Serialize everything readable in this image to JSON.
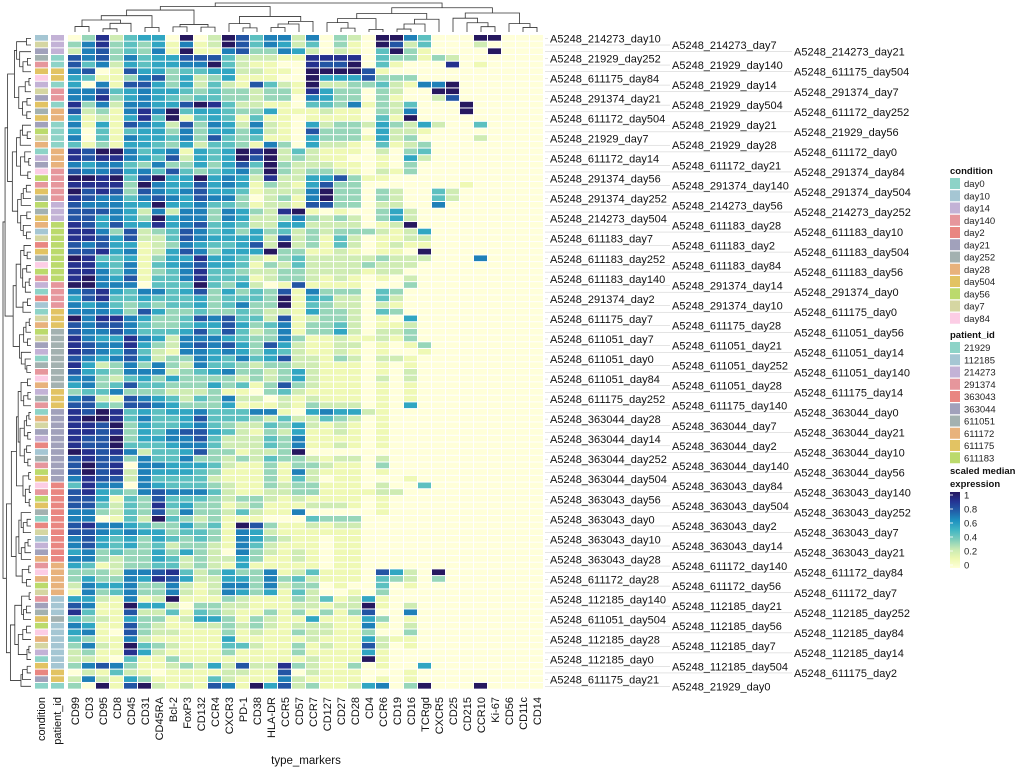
{
  "chart_data": {
    "type": "heatmap",
    "xlabel": "type_markers",
    "annotation_columns": [
      "condition",
      "patient_id"
    ],
    "columns": [
      "CD99",
      "CD3",
      "CD95",
      "CD8",
      "CD45",
      "CD31",
      "CD45RA",
      "Bcl-2",
      "FoxP3",
      "CD132",
      "CCR4",
      "CXCR3",
      "PD-1",
      "CD38",
      "HLA-DR",
      "CCR5",
      "CD57",
      "CCR7",
      "CD127",
      "CD27",
      "CD28",
      "CD4",
      "CCR6",
      "CD19",
      "CD16",
      "TCRgd",
      "CXCR5",
      "CD25",
      "CD215",
      "CCR10",
      "Ki-67",
      "CD56",
      "CD11c",
      "CD14"
    ],
    "rows": [
      "A5248_214273_day10",
      "A5248_214273_day7",
      "A5248_214273_day21",
      "A5248_21929_day252",
      "A5248_21929_day140",
      "A5248_611175_day504",
      "A5248_611175_day84",
      "A5248_21929_day14",
      "A5248_291374_day7",
      "A5248_291374_day21",
      "A5248_21929_day504",
      "A5248_611172_day252",
      "A5248_611172_day504",
      "A5248_21929_day21",
      "A5248_21929_day56",
      "A5248_21929_day7",
      "A5248_21929_day28",
      "A5248_611172_day0",
      "A5248_611172_day14",
      "A5248_611172_day21",
      "A5248_291374_day84",
      "A5248_291374_day56",
      "A5248_291374_day140",
      "A5248_291374_day504",
      "A5248_291374_day252",
      "A5248_214273_day56",
      "A5248_214273_day252",
      "A5248_214273_day504",
      "A5248_611183_day28",
      "A5248_611183_day10",
      "A5248_611183_day7",
      "A5248_611183_day2",
      "A5248_611183_day504",
      "A5248_611183_day252",
      "A5248_611183_day84",
      "A5248_611183_day56",
      "A5248_611183_day140",
      "A5248_291374_day14",
      "A5248_291374_day0",
      "A5248_291374_day2",
      "A5248_291374_day10",
      "A5248_611175_day0",
      "A5248_611175_day7",
      "A5248_611175_day28",
      "A5248_611051_day56",
      "A5248_611051_day7",
      "A5248_611051_day21",
      "A5248_611051_day14",
      "A5248_611051_day0",
      "A5248_611051_day252",
      "A5248_611051_day140",
      "A5248_611051_day84",
      "A5248_611051_day28",
      "A5248_611175_day14",
      "A5248_611175_day252",
      "A5248_611175_day140",
      "A5248_363044_day0",
      "A5248_363044_day28",
      "A5248_363044_day7",
      "A5248_363044_day21",
      "A5248_363044_day14",
      "A5248_363044_day2",
      "A5248_363044_day10",
      "A5248_363044_day252",
      "A5248_363044_day140",
      "A5248_363044_day56",
      "A5248_363044_day504",
      "A5248_363043_day84",
      "A5248_363043_day140",
      "A5248_363043_day56",
      "A5248_363043_day504",
      "A5248_363043_day252",
      "A5248_363043_day0",
      "A5248_363043_day2",
      "A5248_363043_day7",
      "A5248_363043_day10",
      "A5248_363043_day14",
      "A5248_363043_day21",
      "A5248_363043_day28",
      "A5248_611172_day140",
      "A5248_611172_day84",
      "A5248_611172_day28",
      "A5248_611172_day56",
      "A5248_611172_day7",
      "A5248_112185_day140",
      "A5248_112185_day21",
      "A5248_112185_day252",
      "A5248_611051_day504",
      "A5248_112185_day56",
      "A5248_112185_day84",
      "A5248_112185_day28",
      "A5248_112185_day7",
      "A5248_112185_day14",
      "A5248_112185_day0",
      "A5248_112185_day504",
      "A5248_611175_day2",
      "A5248_611175_day21",
      "A5248_21929_day0"
    ],
    "value_digits_scale": 9,
    "values_digits": [
      "0382455090297466260320996400099000",
      "3683435161297465240310972400020000",
      "2673436191167336520210493100009000",
      "7673645577742221188880433132000000",
      "7462545566942110087790410008010000",
      "6701755344552211099997100000000000",
      "5411367352351110095557333000000000",
      "5061775352421742192233421669000000",
      "6674565543433233185330320099000000",
      "6683565434433233065330310027000000",
      "8362665579842211044361324000900000",
      "7231686945543351112110326000900000",
      "5121584914541411011110419000000000",
      "6151765273652621052332532520040000",
      "5041455363553521073330522100000000",
      "6041655463743411053331523000020000",
      "4131554352443163052210412300000000",
      "8799645615459892421110203400000000",
      "8788654725459792321100105200000000",
      "6566436335357493222110103000000000",
      "7667564743456393233210213000000000",
      "9989479559565282255731100000000000",
      "8888396557565132157330000000100000",
      "9787376567554122269330320042000000",
      "8766467657663023169330320042000000",
      "7666559556443122177330220060000000",
      "7776526266365328910100352000000000",
      "7756539566365223632320352000000000",
      "8757558567454225522220129000000000",
      "8863723476453534232333212500000000",
      "8875722476555527231420112200000000",
      "7675512365445729231420121100000000",
      "7785612576355593311210110900000000",
      "9844513558554213422222322200060000",
      "8854614567554132422223222000000000",
      "8864613468443223322221220000000000",
      "8965714468444123321210102000000000",
      "9966604449435201711110003000000000",
      "6785466457353437163330430000000000",
      "5784454445344439154220420000000000",
      "6564343445346339143220210000000000",
      "6665375334334322153320430000000000",
      "9688653347674427123320105000000000",
      "7677643345575346133420112000000000",
      "7667644457474236133520223000000000",
      "8655865266654336311211213000000000",
      "8766853267675375211220101300000000",
      "8765742166565354211210100100000000",
      "7656752336546457221320221000000000",
      "8523636326443233221110101000000000",
      "7543666234563323521110102000000000",
      "6632453533332323521110202000000000",
      "5634744333534137321110101000000000",
      "3446333222311034211110101000000000",
      "6721765424362202121110101000000000",
      "7743776533351112132220105000000000",
      "8798454556444661056552100000000000",
      "8998464457444324224320100000000000",
      "8879354456432243521210100000000000",
      "8878354677542132511210100000000000",
      "8779355667422243611110100000000000",
      "8779444566422243611210100000000000",
      "9878624457331223900000000000000000",
      "7877364463323243321220200000000000",
      "7978066555421131332110300000000000",
      "7978265554311131621110100000000000",
      "6877264444211131420110001000000000",
      "4866065444321132331110200400000000",
      "7854367666421122331111220000000000",
      "7751437444323321211110100000000000",
      "7742438453312311122210100000000000",
      "6632437363324211600000100000000000",
      "6601429432311100043330000000000000",
      "7866543353419731121220000000000000",
      "7765655344316521111110000000000000",
      "6754535434316532110110000000000000",
      "6754534233216421110110000000000000",
      "5634335353206321210110000000000000",
      "6632335423225311210110000000000000",
      "5412334423215111110110000000000000",
      "3332667842353361241110752090000000",
      "3533658752255363421110432030000000",
      "2655633621266362330100401000000000",
      "1634633621265351420010300000000000",
      "5521612911132111324125100000000000",
      "7611955203322111221229102000000000",
      "8411722414321131313137006000000000",
      "4321533125531321151115301000000000",
      "6511732112232321222116102000000000",
      "5610732211131211322113003000000000",
      "4311621111151111121115211000000000",
      "3621943211144211312117201000000000",
      "2311852111131111311115100000000000",
      "2210411311111111121119100000000000",
      "3676311232527228321130100500000000",
      "0214210111122117021110001000000000",
      "2621531111421116211110101000000000",
      "3091792121761957231125603900090000"
    ]
  },
  "legend": {
    "condition": {
      "title": "condition",
      "items": [
        {
          "label": "day0",
          "color": "#8dd3c7"
        },
        {
          "label": "day10",
          "color": "#a5c6d3"
        },
        {
          "label": "day14",
          "color": "#c3b2d6"
        },
        {
          "label": "day140",
          "color": "#e6969c"
        },
        {
          "label": "day2",
          "color": "#e98681"
        },
        {
          "label": "day21",
          "color": "#a1a1bb"
        },
        {
          "label": "day252",
          "color": "#a3b1b0"
        },
        {
          "label": "day28",
          "color": "#e8b27c"
        },
        {
          "label": "day504",
          "color": "#e2c363"
        },
        {
          "label": "day56",
          "color": "#bbda6c"
        },
        {
          "label": "day7",
          "color": "#d5d6a2"
        },
        {
          "label": "day84",
          "color": "#fccde5"
        }
      ]
    },
    "patient_id": {
      "title": "patient_id",
      "items": [
        {
          "label": "21929",
          "color": "#8dd3c7"
        },
        {
          "label": "112185",
          "color": "#a5c6d3"
        },
        {
          "label": "214273",
          "color": "#c3b2d6"
        },
        {
          "label": "291374",
          "color": "#e6969c"
        },
        {
          "label": "363043",
          "color": "#e98681"
        },
        {
          "label": "363044",
          "color": "#a1a1bb"
        },
        {
          "label": "611051",
          "color": "#a3b1b0"
        },
        {
          "label": "611172",
          "color": "#e8b27c"
        },
        {
          "label": "611175",
          "color": "#e2c363"
        },
        {
          "label": "611183",
          "color": "#bbda6c"
        }
      ]
    },
    "scale": {
      "title_line1": "scaled median",
      "title_line2": "expression",
      "ticks": [
        "1",
        "0.8",
        "0.6",
        "0.4",
        "0.2",
        "0"
      ],
      "colors": [
        "#ffffd9",
        "#edf8b1",
        "#c7e9b4",
        "#7fcdbb",
        "#41b6c4",
        "#1d91c0",
        "#225ea8",
        "#253494",
        "#26185f"
      ]
    }
  }
}
